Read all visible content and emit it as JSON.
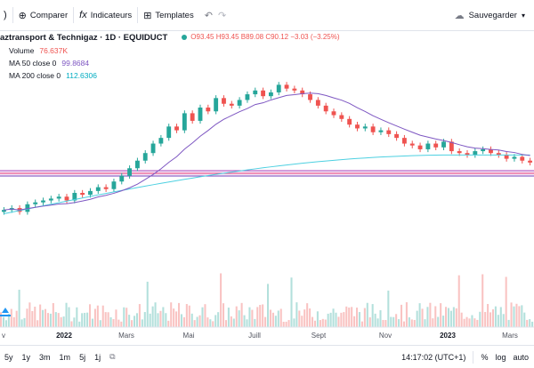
{
  "toolbar": {
    "compare_label": "Comparer",
    "indicators_label": "Indicateurs",
    "templates_label": "Templates",
    "save_label": "Sauvegarder"
  },
  "legend": {
    "symbol": "aztransport & Technigaz · 1D · EQUIDUCT",
    "ohlc": "O93.45  H93.45  B89.08  C90.12  −3.03 (−3.25%)",
    "volume_label": "Volume",
    "volume_value": "76.637K",
    "ma50_label": "MA 50 close 0",
    "ma50_value": "99.8684",
    "ma200_label": "MA 200 close 0",
    "ma200_value": "112.6306"
  },
  "chart_data": {
    "type": "line",
    "x_labels": [
      "v",
      "2022",
      "Mars",
      "Mai",
      "Juill",
      "Sept",
      "Nov",
      "2023",
      "Mars"
    ],
    "series": [
      {
        "name": "MA 50 close 0",
        "color": "#7e57c2"
      },
      {
        "name": "MA 200 close 0",
        "color": "#4dd0e1"
      }
    ],
    "price": [
      86,
      87,
      85,
      89,
      90,
      91,
      92,
      93,
      91,
      95,
      94,
      96,
      98,
      97,
      101,
      104,
      108,
      112,
      116,
      121,
      124,
      130,
      128,
      137,
      133,
      140,
      138,
      145,
      142,
      141,
      144,
      147,
      149,
      146,
      148,
      152,
      150,
      149,
      147,
      144,
      141,
      138,
      136,
      134,
      131,
      129,
      130,
      127,
      128,
      126,
      124,
      121,
      120,
      118,
      121,
      119,
      122,
      117,
      116,
      115,
      117,
      118,
      116,
      115,
      113,
      114,
      112,
      111
    ],
    "highlight_band": "support zone"
  },
  "timebar": {
    "ranges": [
      "5y",
      "1y",
      "3m",
      "1m",
      "5j",
      "1j"
    ],
    "time": "14:17:02 (UTC+1)",
    "percent": "%",
    "log": "log",
    "auto": "auto"
  }
}
